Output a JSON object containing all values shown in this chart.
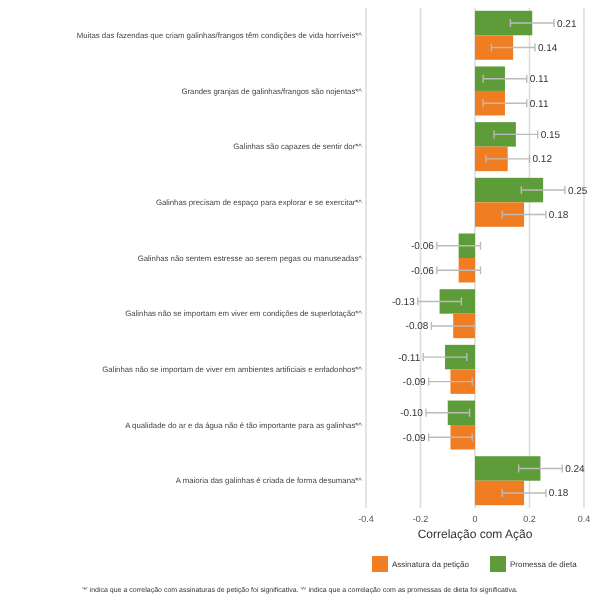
{
  "chart_data": {
    "type": "bar",
    "orientation": "horizontal",
    "xlabel": "Correlação com Ação",
    "categories": [
      "Muitas das fazendas que criam galinhas/frangos têm condições de vida horríveis*^",
      "Grandes granjas de galinhas/frangos são nojentas*^",
      "Galinhas são capazes de sentir dor*^",
      "Galinhas precisam de espaço para explorar e se exercitar*^",
      "Galinhas não sentem estresse ao serem pegas ou manuseadas^",
      "Galinhas não se importam em viver em condições de superlotação*^",
      "Galinhas não se importam de viver em ambientes artificiais e enfadonhos*^",
      "A qualidade do ar e da água não é tão importante para as galinhas*^",
      "A maioria das galinhas é criada de forma desumana*^"
    ],
    "series": [
      {
        "name": "Promessa de dieta",
        "color": "#5e9c3a",
        "values": [
          0.21,
          0.11,
          0.15,
          0.25,
          -0.06,
          -0.13,
          -0.11,
          -0.1,
          0.24
        ],
        "errors": [
          0.08,
          0.08,
          0.08,
          0.08,
          0.08,
          0.08,
          0.08,
          0.08,
          0.08
        ],
        "value_labels": [
          "0.21",
          "0.11",
          "0.15",
          "0.25",
          "-0.06",
          "-0.13",
          "-0.11",
          "-0.10",
          "0.24"
        ]
      },
      {
        "name": "Assinatura da petição",
        "color": "#f07d22",
        "values": [
          0.14,
          0.11,
          0.12,
          0.18,
          -0.06,
          -0.08,
          -0.09,
          -0.09,
          0.18
        ],
        "errors": [
          0.08,
          0.08,
          0.08,
          0.08,
          0.08,
          0.08,
          0.08,
          0.08,
          0.08
        ],
        "value_labels": [
          "0.14",
          "0.11",
          "0.12",
          "0.18",
          "-0.06",
          "-0.08",
          "-0.09",
          "-0.09",
          "0.18"
        ]
      }
    ],
    "xlim": [
      -0.4,
      0.4
    ],
    "xticks": [
      -0.4,
      -0.2,
      0.0,
      0.2,
      0.4
    ],
    "grid": "x",
    "legend": "bottom",
    "annotations": [
      "'*' indica que a correlação com assinaturas de petição foi significativa. '^' indica que a correlação com as promessas de dieta foi significativa."
    ]
  }
}
